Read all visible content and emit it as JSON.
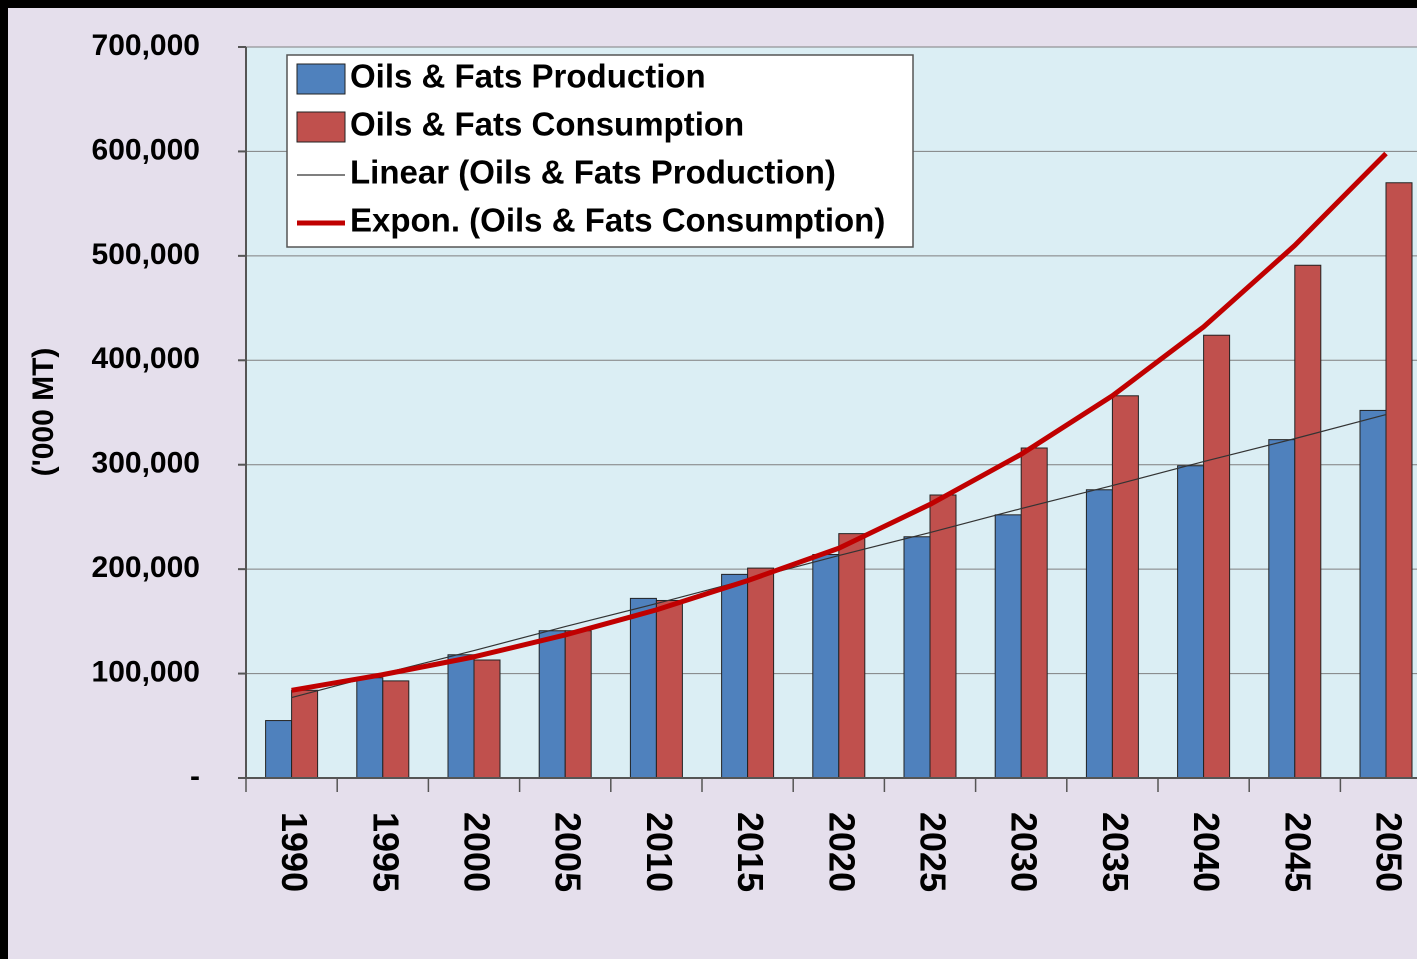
{
  "chart_data": {
    "type": "bar",
    "y_label": "('000 MT)",
    "categories": [
      "1990",
      "1995",
      "2000",
      "2005",
      "2010",
      "2015",
      "2020",
      "2025",
      "2030",
      "2035",
      "2040",
      "2045",
      "2050"
    ],
    "series": [
      {
        "name": "Oils & Fats Production",
        "color": "#4f81bd",
        "values": [
          55000,
          96000,
          118000,
          141000,
          172000,
          195000,
          214000,
          231000,
          252000,
          276000,
          299000,
          324000,
          352000
        ]
      },
      {
        "name": "Oils & Fats Consumption",
        "color": "#c0504d",
        "values": [
          84000,
          93000,
          113000,
          141000,
          170000,
          201000,
          234000,
          271000,
          316000,
          366000,
          424000,
          491000,
          570000
        ]
      },
      {
        "name": "Linear (Oils & Fats Production)",
        "type": "line",
        "color": "#333333",
        "values": [
          77000,
          100000,
          122000,
          145000,
          167000,
          190000,
          213000,
          235000,
          258000,
          280000,
          303000,
          325000,
          348000
        ]
      },
      {
        "name": "Expon. (Oils & Fats Consumption)",
        "type": "line",
        "color": "#c00000",
        "values": [
          84000,
          99000,
          116000,
          137000,
          161000,
          189000,
          220000,
          262000,
          310000,
          366000,
          432000,
          510000,
          598000
        ]
      }
    ],
    "ylim": [
      0,
      700000
    ],
    "yticks": [
      {
        "value": 0,
        "label": "-"
      },
      {
        "value": 100000,
        "label": "100,000"
      },
      {
        "value": 200000,
        "label": "200,000"
      },
      {
        "value": 300000,
        "label": "300,000"
      },
      {
        "value": 400000,
        "label": "400,000"
      },
      {
        "value": 500000,
        "label": "500,000"
      },
      {
        "value": 600000,
        "label": "600,000"
      },
      {
        "value": 700000,
        "label": "700,000"
      }
    ],
    "grid": true
  }
}
